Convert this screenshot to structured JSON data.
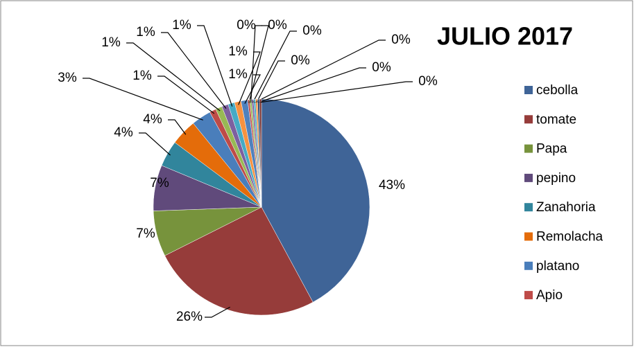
{
  "chart_data": {
    "type": "pie",
    "title": "JULIO 2017",
    "categories": [
      "cebolla",
      "tomate",
      "Papa",
      "pepino",
      "Zanahoria",
      "Remolacha",
      "platano",
      "Apio",
      null,
      null,
      null,
      null,
      null,
      null,
      null,
      null,
      null,
      null,
      null,
      null
    ],
    "values": [
      43,
      26,
      7,
      7,
      4,
      4,
      3,
      1,
      1,
      1,
      1,
      1,
      1,
      0.3,
      0.3,
      0.3,
      0.3,
      0.3,
      0.3,
      0.3
    ],
    "value_labels": [
      "43%",
      "26%",
      "7%",
      "7%",
      "4%",
      "4%",
      "3%",
      "1%",
      "1%",
      "1%",
      "1%",
      "1%",
      "1%",
      "0%",
      "0%",
      "0%",
      "0%",
      "0%",
      "0%",
      "0%"
    ],
    "colors": [
      "#3F6497",
      "#963C3A",
      "#77933C",
      "#604A7B",
      "#31859C",
      "#E46C0A",
      "#4A7EBB",
      "#BE4B48",
      "#98B954",
      "#7D60A0",
      "#46AAC5",
      "#F69240",
      "#4F81BD",
      "#C0504D",
      "#9BBB59",
      "#8064A2",
      "#4BACC6",
      "#F79646",
      "#2C4D75",
      "#772C2A"
    ],
    "legend": "right"
  }
}
